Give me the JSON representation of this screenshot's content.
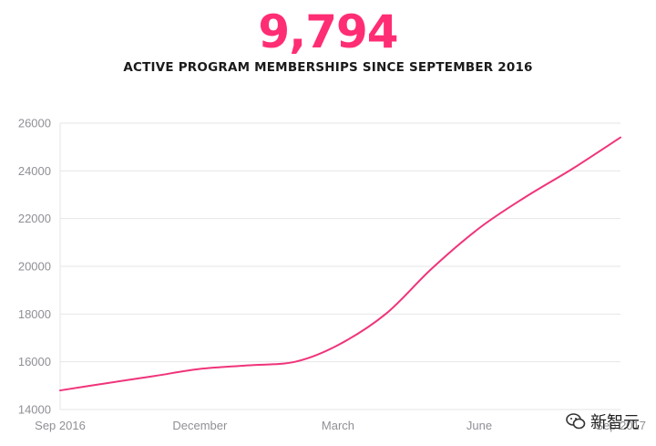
{
  "header": {
    "big_number": "9,794",
    "subtitle": "ACTIVE PROGRAM MEMBERSHIPS SINCE SEPTEMBER 2016"
  },
  "colors": {
    "accent": "#ff2d73",
    "line": "#f0347a",
    "grid": "#e6e6e8",
    "tick_text": "#8f8f96"
  },
  "watermark": {
    "text": "新智元",
    "icon": "wechat-icon"
  },
  "chart_data": {
    "type": "line",
    "title": "",
    "xlabel": "",
    "ylabel": "",
    "x_range": [
      "2016-09-01",
      "2017-09-01"
    ],
    "ylim": [
      14000,
      26000
    ],
    "yticks": [
      14000,
      16000,
      18000,
      20000,
      22000,
      24000,
      26000
    ],
    "xticks": [
      {
        "label": "Sep 2016",
        "date": "2016-09-01"
      },
      {
        "label": "December",
        "date": "2016-12-01"
      },
      {
        "label": "March",
        "date": "2017-03-01"
      },
      {
        "label": "June",
        "date": "2017-06-01"
      },
      {
        "label": "Sep 2017",
        "date": "2017-09-01"
      }
    ],
    "grid": true,
    "legend": "none",
    "series": [
      {
        "x": [
          "2016-09-01",
          "2016-10-01",
          "2016-11-01",
          "2016-12-01",
          "2017-01-01",
          "2017-02-01",
          "2017-03-01",
          "2017-04-01",
          "2017-05-01",
          "2017-06-01",
          "2017-07-01",
          "2017-08-01",
          "2017-09-01"
        ],
        "values": [
          14800,
          15100,
          15400,
          15700,
          15850,
          16000,
          16700,
          18000,
          19900,
          21600,
          22900,
          24100,
          25400
        ]
      }
    ]
  }
}
